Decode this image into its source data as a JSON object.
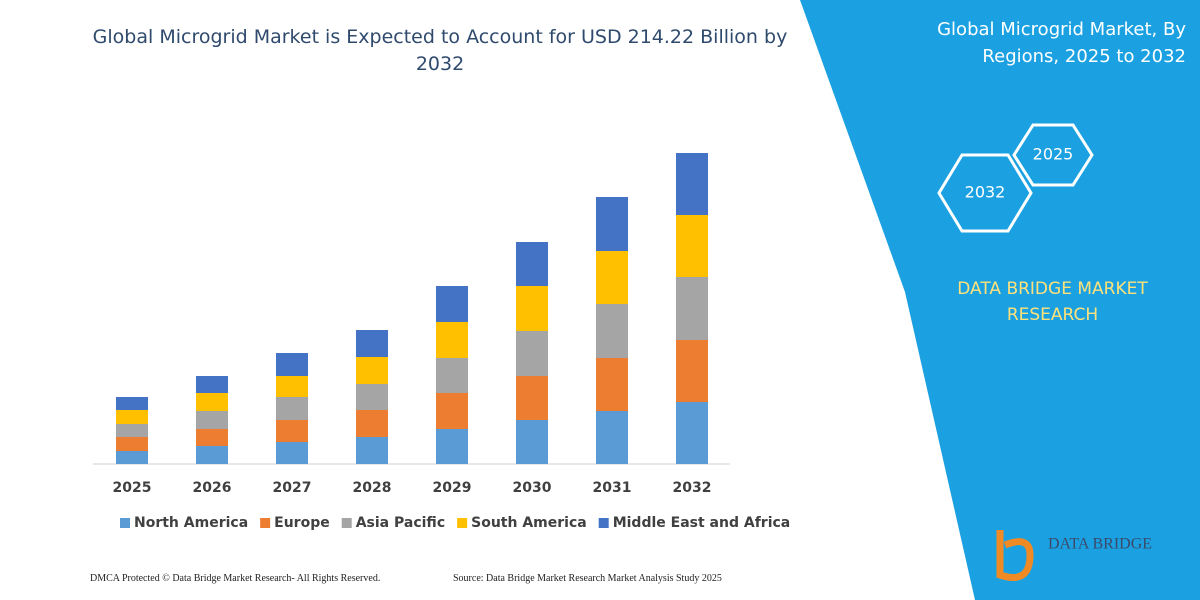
{
  "chart_data": {
    "type": "bar",
    "stacked": true,
    "title": "Global Microgrid Market is Expected to Account for USD 214.22 Billion by 2032",
    "categories": [
      "2025",
      "2026",
      "2027",
      "2028",
      "2029",
      "2030",
      "2031",
      "2032"
    ],
    "series": [
      {
        "name": "North America",
        "color": "#5b9bd5",
        "values": [
          13,
          18,
          22,
          27,
          35,
          44,
          53,
          62
        ]
      },
      {
        "name": "Europe",
        "color": "#ed7d31",
        "values": [
          14,
          17,
          22,
          27,
          36,
          44,
          53,
          62
        ]
      },
      {
        "name": "Asia Pacific",
        "color": "#a5a5a5",
        "values": [
          13,
          18,
          23,
          26,
          35,
          45,
          54,
          63
        ]
      },
      {
        "name": "South America",
        "color": "#ffc000",
        "values": [
          14,
          18,
          21,
          27,
          36,
          45,
          53,
          62
        ]
      },
      {
        "name": "Middle East and Africa",
        "color": "#4472c4",
        "values": [
          13,
          17,
          23,
          27,
          36,
          44,
          54,
          62
        ]
      }
    ]
  },
  "panel": {
    "title": "Global Microgrid Market, By Regions, 2025 to 2032",
    "hexagons": [
      "2025",
      "2032"
    ],
    "brand": "DATA BRIDGE MARKET RESEARCH"
  },
  "footer": {
    "left": "DMCA Protected © Data Bridge Market Research-  All Rights Reserved.",
    "right": "Source: Data Bridge Market Research  Market Analysis Study 2025"
  },
  "logo": "DATA BRIDGE"
}
